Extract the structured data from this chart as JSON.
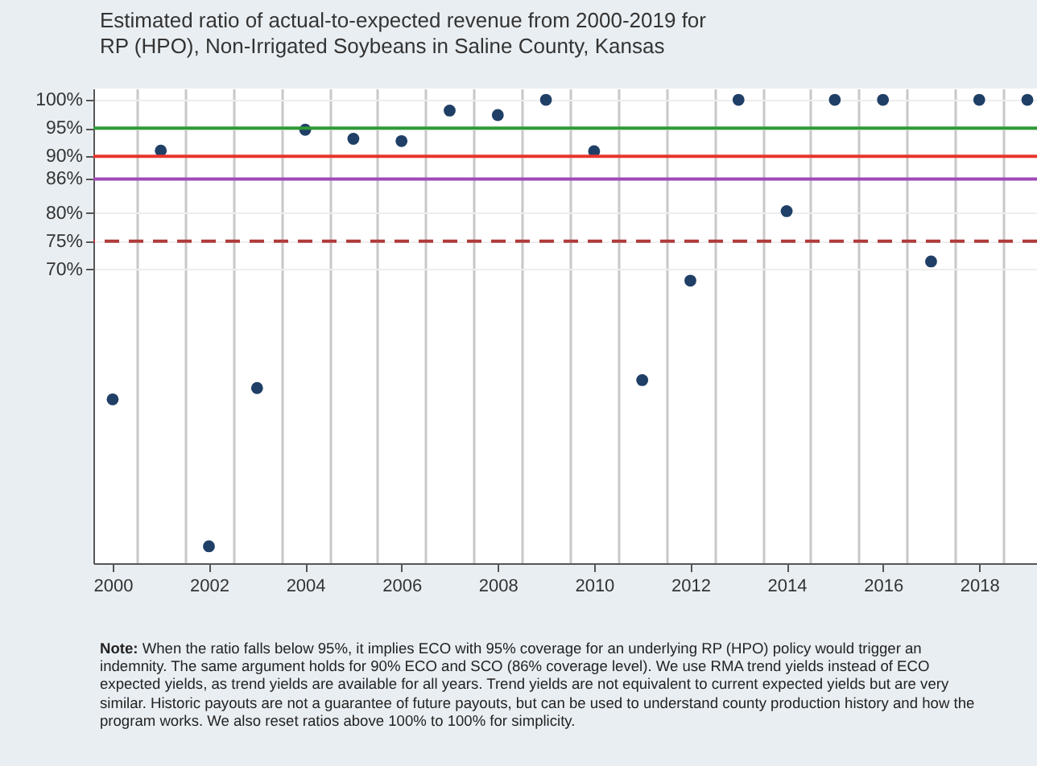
{
  "chart_data": {
    "type": "scatter",
    "title": "Estimated ratio of actual-to-expected revenue from 2000-2019 for RP (HPO), Non-Irrigated Soybeans in Saline County, Kansas",
    "x": [
      2000,
      2001,
      2002,
      2003,
      2004,
      2005,
      2006,
      2007,
      2008,
      2009,
      2010,
      2011,
      2012,
      2013,
      2014,
      2015,
      2016,
      2017,
      2018,
      2019
    ],
    "series": [
      {
        "color": "#1f3f66",
        "values": [
          47,
          91,
          21,
          49,
          94.7,
          93.1,
          92.7,
          98.1,
          97.3,
          100,
          90.9,
          50.4,
          68,
          100,
          80.3,
          100,
          100,
          71.4,
          100,
          100
        ]
      }
    ],
    "xlim": [
      1999.6,
      2019.2
    ],
    "xticks": [
      2000,
      {
        "value": 2000.5,
        "label": null
      },
      {
        "value": 2001.5,
        "label": null
      },
      2002,
      {
        "value": 2002.5,
        "label": null
      },
      {
        "value": 2003.5,
        "label": null
      },
      2004,
      {
        "value": 2004.5,
        "label": null
      },
      {
        "value": 2005.5,
        "label": null
      },
      2006,
      {
        "value": 2006.5,
        "label": null
      },
      {
        "value": 2007.5,
        "label": null
      },
      2008,
      {
        "value": 2008.5,
        "label": null
      },
      {
        "value": 2009.5,
        "label": null
      },
      2010,
      {
        "value": 2010.5,
        "label": null
      },
      {
        "value": 2011.5,
        "label": null
      },
      2012,
      {
        "value": 2012.5,
        "label": null
      },
      {
        "value": 2013.5,
        "label": null
      },
      2014,
      {
        "value": 2014.5,
        "label": null
      },
      {
        "value": 2015.5,
        "label": null
      },
      2016,
      {
        "value": 2016.5,
        "label": null
      },
      {
        "value": 2017.5,
        "label": null
      },
      2018,
      {
        "value": 2018.5,
        "label": null
      }
    ],
    "ylim": [
      18,
      102
    ],
    "yticks": [
      {
        "value": 70,
        "label": "70%"
      },
      {
        "value": 75,
        "label": "75%"
      },
      {
        "value": 80,
        "label": "80%"
      },
      {
        "value": 86,
        "label": "86%"
      },
      {
        "value": 90,
        "label": "90%"
      },
      {
        "value": 95,
        "label": "95%"
      },
      {
        "value": 100,
        "label": "100%"
      }
    ],
    "grid": true,
    "marker": "circle",
    "ref_lines": [
      {
        "axis": "y",
        "value": 95,
        "color": "#2e9a35",
        "line_style": "solid"
      },
      {
        "axis": "y",
        "value": 90,
        "color": "#e8342c",
        "line_style": "solid"
      },
      {
        "axis": "y",
        "value": 86,
        "color": "#a048b8",
        "line_style": "solid"
      },
      {
        "axis": "y",
        "value": 75,
        "color": "#b03a3a",
        "line_style": "dashed"
      }
    ],
    "annotations": [
      "Note: When the ratio falls below 95%, it implies ECO with 95% coverage for an underlying RP (HPO) policy would trigger an indemnity. The same argument holds for 90% ECO and SCO (86% coverage level). We use RMA trend yields instead of ECO expected yields, as trend yields are available for all years. Trend yields are not equivalent to current expected yields but are very similar. Historic payouts are not a guarantee of future payouts,  but can be used to understand county production history and how the program works. We also reset ratios above 100% to 100% for simplicity."
    ]
  }
}
